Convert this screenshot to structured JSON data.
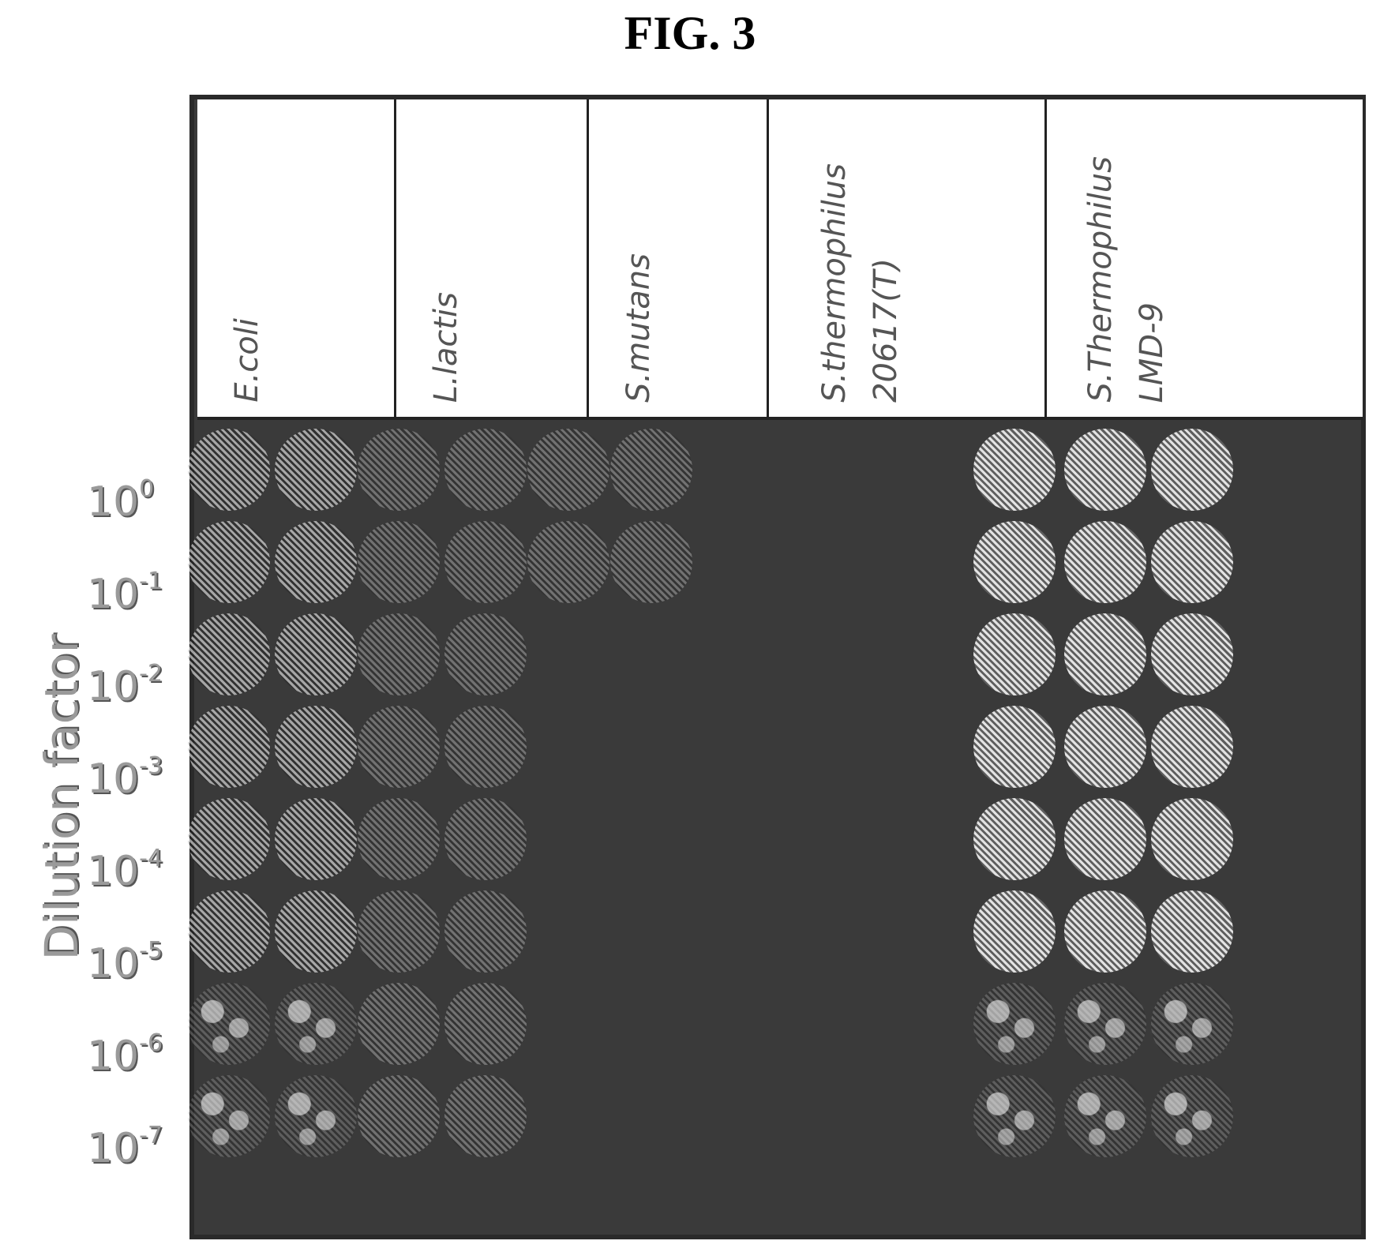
{
  "figure": {
    "title": "FIG. 3"
  },
  "axes": {
    "y_label": "Dilution factor"
  },
  "columns": [
    {
      "line1": "E.coli",
      "line2": ""
    },
    {
      "line1": "L.lactis",
      "line2": ""
    },
    {
      "line1": "S.mutans",
      "line2": ""
    },
    {
      "line1": "S.thermophilus",
      "line2": "20617(T)"
    },
    {
      "line1": "S.Thermophilus",
      "line2": "LMD-9"
    }
  ],
  "dilutions": [
    {
      "base": "10",
      "exp": "0"
    },
    {
      "base": "10",
      "exp": "-1"
    },
    {
      "base": "10",
      "exp": "-2"
    },
    {
      "base": "10",
      "exp": "-3"
    },
    {
      "base": "10",
      "exp": "-4"
    },
    {
      "base": "10",
      "exp": "-5"
    },
    {
      "base": "10",
      "exp": "-6"
    },
    {
      "base": "10",
      "exp": "-7"
    }
  ],
  "colors": {
    "plate_background": "#3a3a3a",
    "spot": "#bfbfbf",
    "label_gray": "#9a9a9a"
  }
}
